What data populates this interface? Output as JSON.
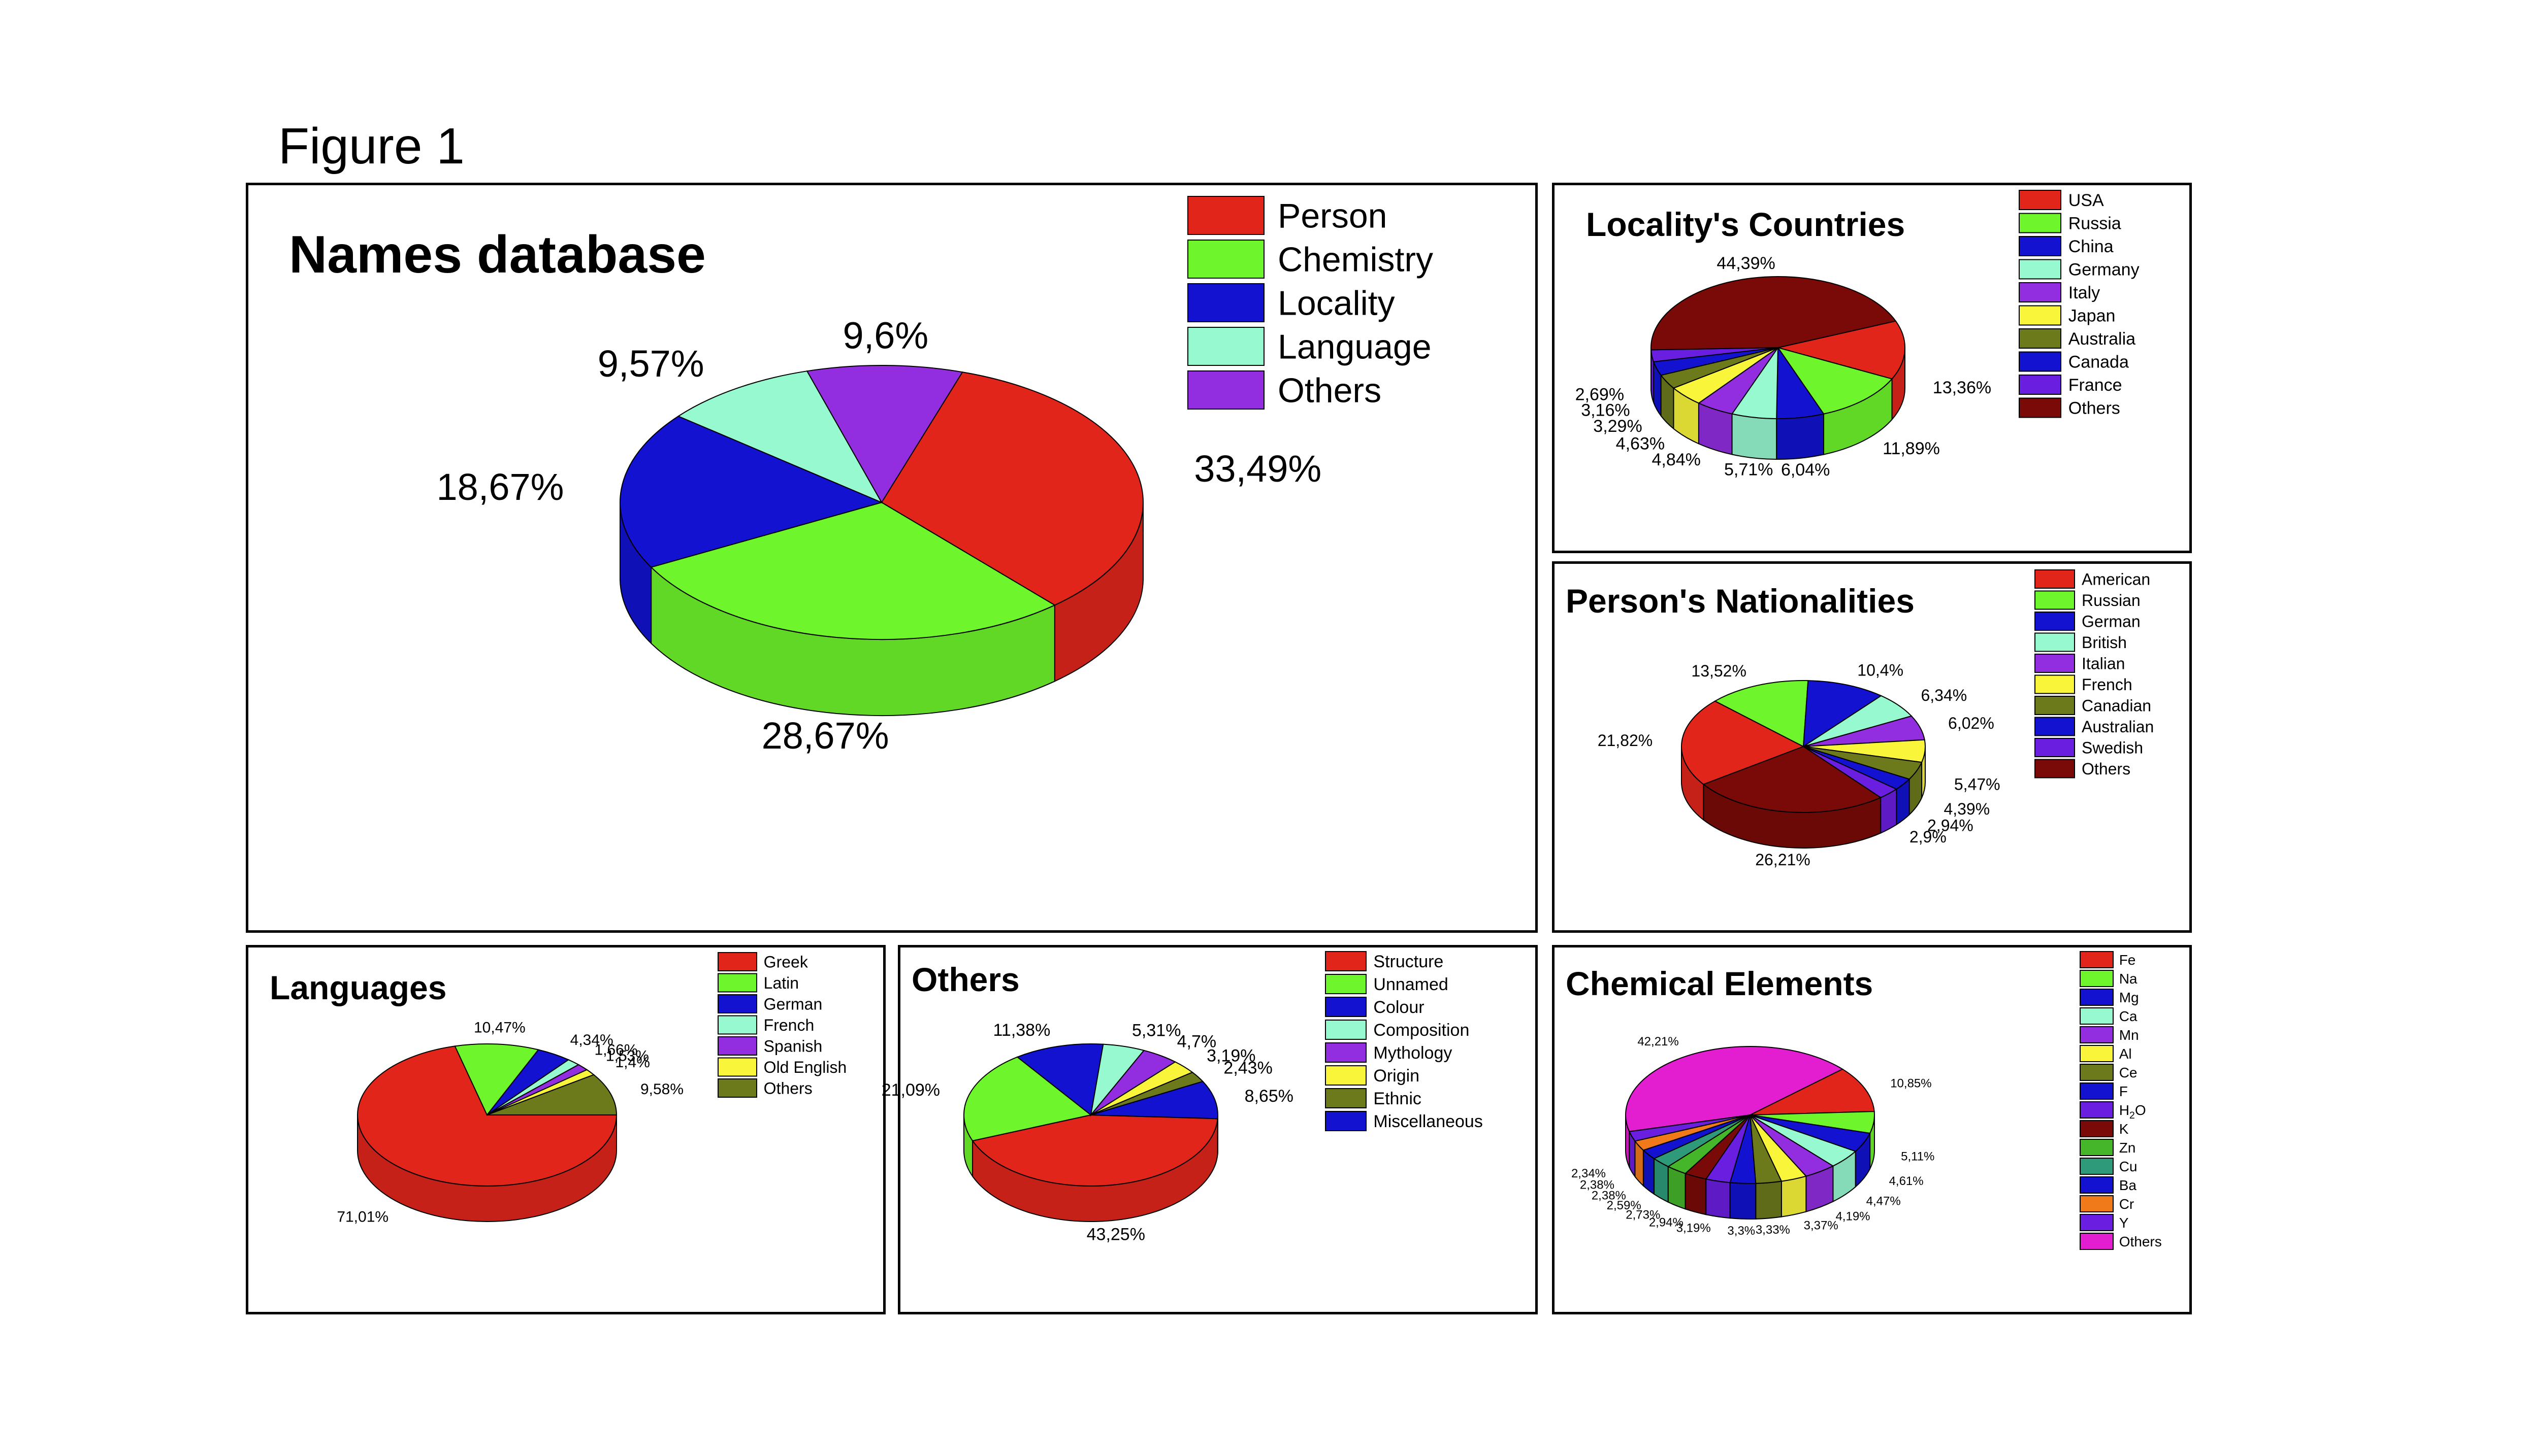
{
  "figure_label": "Figure 1",
  "chart_data": [
    {
      "type": "pie",
      "title": "Names database",
      "categories": [
        "Person",
        "Chemistry",
        "Locality",
        "Language",
        "Others"
      ],
      "values": [
        33.49,
        28.67,
        18.67,
        9.57,
        9.6
      ],
      "value_labels": [
        "33,49%",
        "28,67%",
        "18,67%",
        "9,57%",
        "9,6%"
      ],
      "colors": [
        "#e1251b",
        "#6ef52b",
        "#1212d0",
        "#97f9d0",
        "#922ee0"
      ],
      "legend": [
        "Person",
        "Chemistry",
        "Locality",
        "Language",
        "Others"
      ],
      "legend_position": "top-right",
      "style": "3d"
    },
    {
      "type": "pie",
      "title": "Locality's Countries",
      "categories": [
        "USA",
        "Russia",
        "China",
        "Germany",
        "Italy",
        "Japan",
        "Australia",
        "Canada",
        "France",
        "Others"
      ],
      "values": [
        13.36,
        11.89,
        6.04,
        5.71,
        4.84,
        4.63,
        3.29,
        3.16,
        2.69,
        44.39
      ],
      "value_labels": [
        "13,36%",
        "11,89%",
        "6,04%",
        "5,71%",
        "4,84%",
        "4,63%",
        "3,29%",
        "3,16%",
        "2,69%",
        "44,39%"
      ],
      "colors": [
        "#e1251b",
        "#6ef52b",
        "#1212d0",
        "#97f9d0",
        "#922ee0",
        "#f9f53a",
        "#6d7a1c",
        "#1212d0",
        "#6a1ee0",
        "#7a0a08"
      ],
      "legend": [
        "USA",
        "Russia",
        "China",
        "Germany",
        "Italy",
        "Japan",
        "Australia",
        "Canada",
        "France",
        "Others"
      ],
      "legend_position": "top-right",
      "style": "3d"
    },
    {
      "type": "pie",
      "title": "Person's Nationalities",
      "categories": [
        "American",
        "Russian",
        "German",
        "British",
        "Italian",
        "French",
        "Canadian",
        "Australian",
        "Swedish",
        "Others"
      ],
      "values": [
        21.82,
        13.52,
        10.4,
        6.34,
        6.02,
        5.47,
        4.39,
        2.94,
        2.9,
        26.21
      ],
      "value_labels": [
        "21,82%",
        "13,52%",
        "10,4%",
        "6,34%",
        "6,02%",
        "5,47%",
        "4,39%",
        "2,94%",
        "2,9%",
        "26,21%"
      ],
      "colors": [
        "#e1251b",
        "#6ef52b",
        "#1212d0",
        "#97f9d0",
        "#922ee0",
        "#f9f53a",
        "#6d7a1c",
        "#1212d0",
        "#6a1ee0",
        "#7a0a08"
      ],
      "legend": [
        "American",
        "Russian",
        "German",
        "British",
        "Italian",
        "French",
        "Canadian",
        "Australian",
        "Swedish",
        "Others"
      ],
      "legend_position": "top-right",
      "style": "3d"
    },
    {
      "type": "pie",
      "title": "Languages",
      "categories": [
        "Greek",
        "Latin",
        "German",
        "French",
        "Spanish",
        "Old English",
        "Others"
      ],
      "values": [
        71.01,
        10.47,
        4.34,
        1.66,
        1.53,
        1.4,
        9.58
      ],
      "value_labels": [
        "71,01%",
        "10,47%",
        "4,34%",
        "1,66%",
        "1,53%",
        "1,4%",
        "9,58%"
      ],
      "colors": [
        "#e1251b",
        "#6ef52b",
        "#1212d0",
        "#97f9d0",
        "#922ee0",
        "#f9f53a",
        "#6d7a1c"
      ],
      "legend": [
        "Greek",
        "Latin",
        "German",
        "French",
        "Spanish",
        "Old English",
        "Others"
      ],
      "legend_position": "top-right",
      "style": "3d"
    },
    {
      "type": "pie",
      "title": "Others",
      "categories": [
        "Structure",
        "Unnamed",
        "Colour",
        "Composition",
        "Mythology",
        "Origin",
        "Ethnic",
        "Miscellaneous"
      ],
      "values": [
        43.25,
        21.09,
        11.38,
        5.31,
        4.7,
        3.19,
        2.43,
        8.65
      ],
      "value_labels": [
        "43,25%",
        "21,09%",
        "11,38%",
        "5,31%",
        "4,7%",
        "3,19%",
        "2,43%",
        "8,65%"
      ],
      "colors": [
        "#e1251b",
        "#6ef52b",
        "#1212d0",
        "#97f9d0",
        "#922ee0",
        "#f9f53a",
        "#6d7a1c",
        "#1212d0"
      ],
      "legend": [
        "Structure",
        "Unnamed",
        "Colour",
        "Composition",
        "Mythology",
        "Origin",
        "Ethnic",
        "Miscellaneous"
      ],
      "legend_position": "top-right",
      "style": "3d"
    },
    {
      "type": "pie",
      "title": "Chemical Elements",
      "categories": [
        "Fe",
        "Na",
        "Mg",
        "Ca",
        "Mn",
        "Al",
        "Ce",
        "F",
        "H2O",
        "K",
        "Zn",
        "Cu",
        "Ba",
        "Cr",
        "Y",
        "Others"
      ],
      "values": [
        10.85,
        5.11,
        4.61,
        4.47,
        4.19,
        3.37,
        3.33,
        3.3,
        3.19,
        2.94,
        2.73,
        2.59,
        2.38,
        2.38,
        2.34,
        42.21
      ],
      "value_labels": [
        "10,85%",
        "5,11%",
        "4,61%",
        "4,47%",
        "4,19%",
        "3,37%",
        "3,33%",
        "3,3%",
        "3,19%",
        "2,94%",
        "2,73%",
        "2,59%",
        "2,38%",
        "2,38%",
        "2,34%",
        "42,21%"
      ],
      "colors": [
        "#e1251b",
        "#6ef52b",
        "#1212d0",
        "#97f9d0",
        "#922ee0",
        "#f9f53a",
        "#6d7a1c",
        "#1212d0",
        "#6a1ee0",
        "#7a0a08",
        "#45b52a",
        "#2e9a7a",
        "#1212d0",
        "#f07a1a",
        "#6a1ee0",
        "#e21ed0"
      ],
      "legend": [
        "Fe",
        "Na",
        "Mg",
        "Ca",
        "Mn",
        "Al",
        "Ce",
        "F",
        "H2O",
        "K",
        "Zn",
        "Cu",
        "Ba",
        "Cr",
        "Y",
        "Others"
      ],
      "legend_position": "top-right",
      "style": "3d"
    }
  ]
}
